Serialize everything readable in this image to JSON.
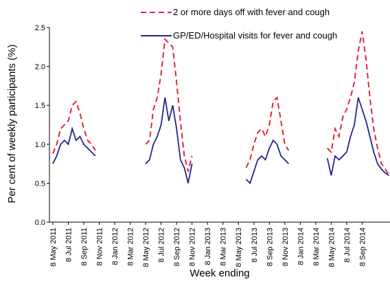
{
  "chart_data": {
    "type": "line",
    "y_label": "Per cent of weekly participants (%)",
    "x_label": "Week ending",
    "ylim": [
      0,
      2.5
    ],
    "yticks": [
      {
        "value": 0,
        "label": "0.0"
      },
      0.5,
      {
        "value": 1,
        "label": "1.0"
      },
      1.5,
      {
        "value": 2,
        "label": "2.0"
      },
      2.5
    ],
    "categories": [
      "8 May 2011",
      null,
      null,
      null,
      "8 Jul 2011",
      null,
      null,
      null,
      "8 Sep 2011",
      null,
      null,
      null,
      "8 Nov 2011",
      null,
      null,
      null,
      "8 Jan 2012",
      null,
      null,
      null,
      "8 Mar 2012",
      null,
      null,
      null,
      "8 May 2012",
      null,
      null,
      null,
      "8 Jul 2012",
      null,
      null,
      null,
      "8 Sep 2012",
      null,
      null,
      null,
      "8 Nov 2012",
      null,
      null,
      null,
      "8 Jan 2013",
      null,
      null,
      null,
      "8 Mar 2013",
      null,
      null,
      null,
      "8 May 2013",
      null,
      null,
      null,
      "8 Jul 2013",
      null,
      null,
      null,
      "8 Sep 2013",
      null,
      null,
      null,
      "8 Nov 2013",
      null,
      null,
      null,
      "8 Jan 2014",
      null,
      null,
      null,
      "8 Mar 2014",
      null,
      null,
      null,
      "8 May 2014",
      null,
      null,
      null,
      "8 Jul 2014",
      null,
      null,
      null,
      "8 Sep 2014",
      null,
      null,
      null,
      null,
      null,
      null,
      null
    ],
    "series": [
      {
        "name": "2 or more days off with fever and cough",
        "color": "#e8203a",
        "dashed": true,
        "values": [
          0.88,
          1.0,
          1.2,
          1.25,
          1.3,
          1.5,
          1.55,
          1.4,
          1.2,
          1.05,
          1.0,
          0.92,
          null,
          null,
          null,
          null,
          null,
          null,
          null,
          null,
          null,
          null,
          null,
          null,
          1.0,
          1.05,
          1.45,
          1.6,
          1.9,
          2.35,
          2.3,
          2.25,
          1.8,
          1.3,
          0.85,
          0.65,
          0.85,
          null,
          null,
          null,
          null,
          null,
          null,
          null,
          null,
          null,
          null,
          null,
          null,
          null,
          0.7,
          0.8,
          1.0,
          1.15,
          1.2,
          1.1,
          1.25,
          1.55,
          1.6,
          1.3,
          1.0,
          0.92,
          null,
          null,
          null,
          null,
          null,
          null,
          null,
          null,
          null,
          0.95,
          0.9,
          1.2,
          1.1,
          1.35,
          1.45,
          1.6,
          1.8,
          2.2,
          2.45,
          2.1,
          1.6,
          1.2,
          0.95,
          0.75,
          0.68,
          0.6
        ]
      },
      {
        "name": "GP/ED/Hospital visits for fever and cough",
        "color": "#25228c",
        "dashed": false,
        "values": [
          0.75,
          0.85,
          1.0,
          1.05,
          1.0,
          1.2,
          1.05,
          1.1,
          1.0,
          0.95,
          0.9,
          0.85,
          null,
          null,
          null,
          null,
          null,
          null,
          null,
          null,
          null,
          null,
          null,
          null,
          0.75,
          0.8,
          1.0,
          1.1,
          1.25,
          1.6,
          1.3,
          1.5,
          1.2,
          0.8,
          0.7,
          0.5,
          0.75,
          null,
          null,
          null,
          null,
          null,
          null,
          null,
          null,
          null,
          null,
          null,
          null,
          null,
          0.55,
          0.5,
          0.65,
          0.8,
          0.85,
          0.8,
          0.95,
          1.05,
          1.0,
          0.85,
          0.8,
          0.75,
          null,
          null,
          null,
          null,
          null,
          null,
          null,
          null,
          null,
          0.82,
          0.6,
          0.85,
          0.8,
          0.85,
          0.9,
          1.1,
          1.25,
          1.6,
          1.45,
          1.3,
          1.1,
          0.9,
          0.75,
          0.68,
          0.63,
          0.6
        ]
      }
    ]
  }
}
